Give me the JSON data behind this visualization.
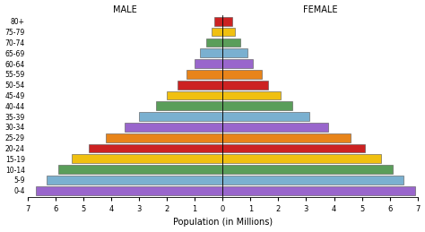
{
  "age_groups": [
    "80+",
    "75-79",
    "70-74",
    "65-69",
    "60-64",
    "55-59",
    "50-54",
    "45-49",
    "40-44",
    "35-39",
    "30-34",
    "25-29",
    "20-24",
    "15-19",
    "10-14",
    "5-9",
    "0-4"
  ],
  "male": [
    0.3,
    0.4,
    0.6,
    0.8,
    1.0,
    1.3,
    1.6,
    2.0,
    2.4,
    3.0,
    3.5,
    4.2,
    4.8,
    5.4,
    5.9,
    6.3,
    6.7
  ],
  "female": [
    0.35,
    0.45,
    0.65,
    0.9,
    1.1,
    1.4,
    1.65,
    2.1,
    2.5,
    3.1,
    3.8,
    4.6,
    5.1,
    5.7,
    6.1,
    6.5,
    6.9
  ],
  "colors": [
    "#cc2222",
    "#f0c010",
    "#5a9e5a",
    "#7ab0d0",
    "#9966cc",
    "#e8841a",
    "#cc2222",
    "#f0c010",
    "#5a9e5a",
    "#7ab0d0",
    "#9966cc",
    "#e8841a",
    "#cc2222",
    "#f0c010",
    "#5a9e5a",
    "#7ab0d0",
    "#9966cc"
  ],
  "title_male": "MALE",
  "title_female": "FEMALE",
  "xlabel": "Population (in Millions)",
  "xlim": 7,
  "background_color": "#ffffff",
  "bar_edge_color": "#555555",
  "bar_height": 0.82
}
